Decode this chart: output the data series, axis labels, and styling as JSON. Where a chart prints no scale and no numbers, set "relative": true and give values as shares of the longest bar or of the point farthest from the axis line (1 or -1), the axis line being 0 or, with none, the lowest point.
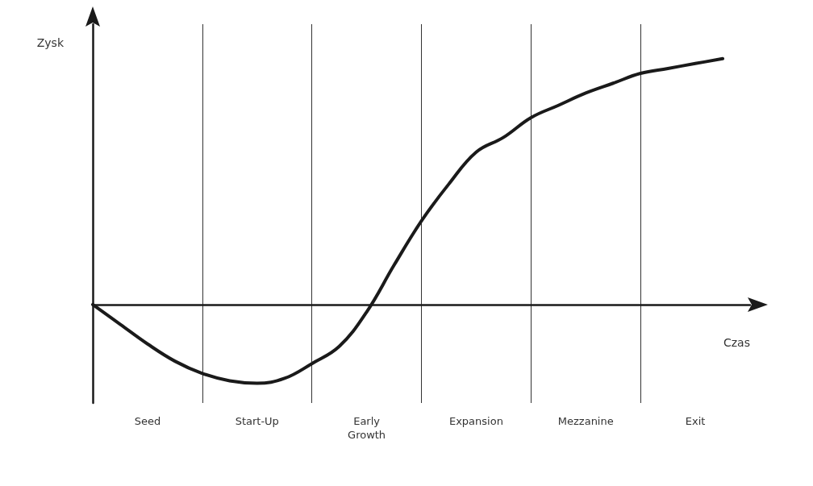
{
  "chart_data": {
    "type": "line",
    "relative": true,
    "xlabel": "Czas",
    "ylabel": "Zysk",
    "categories": [
      null,
      null,
      "Seed",
      null,
      null,
      null,
      "Start-Up",
      null,
      null,
      null,
      "Early\nGrowth",
      null,
      null,
      null,
      "Expansion",
      null,
      null,
      null,
      "Mezzanine",
      null,
      null,
      null,
      "Exit",
      null,
      null
    ],
    "series": [
      {
        "color": "#1a1a1a",
        "values": [
          0,
          -0.08,
          -0.16,
          -0.23,
          -0.28,
          -0.31,
          -0.32,
          -0.3,
          -0.24,
          -0.17,
          -0.03,
          0.16,
          0.34,
          0.49,
          0.62,
          0.68,
          0.76,
          0.81,
          0.86,
          0.9,
          0.94,
          0.96,
          0.98,
          1,
          null
        ]
      }
    ],
    "grid": "x",
    "marker": "none",
    "line_style": "solid"
  }
}
